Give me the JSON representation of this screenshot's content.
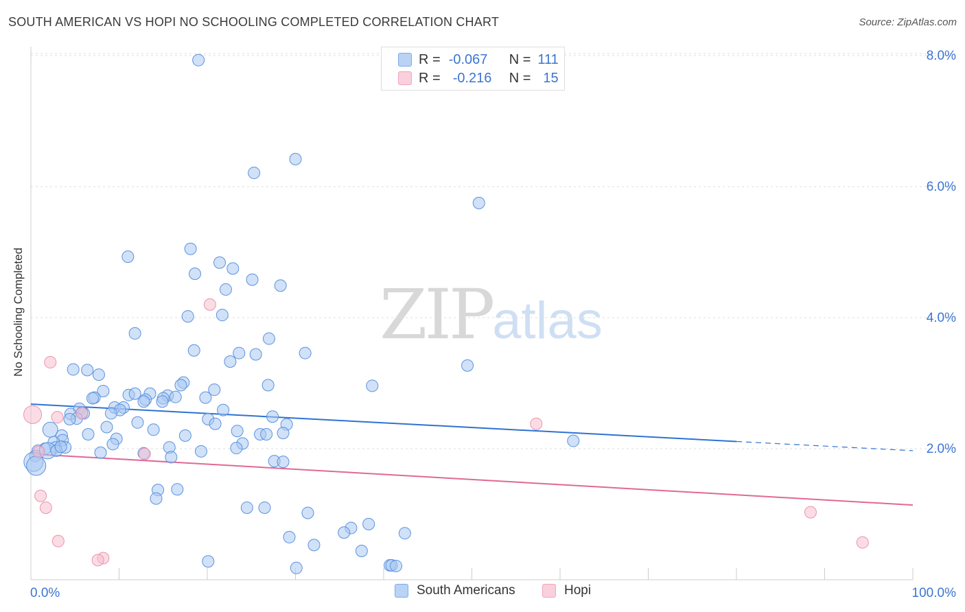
{
  "title": "SOUTH AMERICAN VS HOPI NO SCHOOLING COMPLETED CORRELATION CHART",
  "source": "Source: ZipAtlas.com",
  "watermark": {
    "zip": "ZIP",
    "atlas": "atlas"
  },
  "legend_top": [
    {
      "r_label": "R =",
      "r_value": "-0.067",
      "n_label": "N =",
      "n_value": "111"
    },
    {
      "r_label": "R =",
      "r_value": "-0.216",
      "n_label": "N =",
      "n_value": "15"
    }
  ],
  "legend_bottom": [
    {
      "label": "South Americans"
    },
    {
      "label": "Hopi"
    }
  ],
  "colors": {
    "south_american_fill": "#a9c8f2",
    "south_american_stroke": "#5a92dd",
    "south_american_line": "#2d72d2",
    "hopi_fill": "#f7bfcf",
    "hopi_stroke": "#e894ae",
    "hopi_line": "#e06895",
    "tick_label": "#3b75d1",
    "grid": "#dedede"
  },
  "chart_data": {
    "type": "scatter",
    "title": "SOUTH AMERICAN VS HOPI NO SCHOOLING COMPLETED CORRELATION CHART",
    "xlabel": "",
    "ylabel": "No Schooling Completed",
    "xlim": [
      0,
      100
    ],
    "ylim": [
      0,
      8.2
    ],
    "x_tick_labels": [
      "0.0%",
      "100.0%"
    ],
    "y_ticks": [
      2,
      4,
      6,
      8
    ],
    "y_tick_labels": [
      "2.0%",
      "4.0%",
      "6.0%",
      "8.0%"
    ],
    "series": [
      {
        "name": "South Americans",
        "r": -0.067,
        "n": 111,
        "trend": {
          "x0": 0,
          "y0": 2.68,
          "x1": 80,
          "y1": 2.11,
          "dashed_to_x": 100,
          "dashed_to_y": 1.97
        },
        "points": [
          {
            "x": 19.0,
            "y": 7.93
          },
          {
            "x": 30.0,
            "y": 6.42
          },
          {
            "x": 25.3,
            "y": 6.21
          },
          {
            "x": 50.8,
            "y": 5.75
          },
          {
            "x": 18.1,
            "y": 5.05
          },
          {
            "x": 11.0,
            "y": 4.93
          },
          {
            "x": 21.4,
            "y": 4.84
          },
          {
            "x": 22.9,
            "y": 4.75
          },
          {
            "x": 18.6,
            "y": 4.67
          },
          {
            "x": 25.1,
            "y": 4.58
          },
          {
            "x": 28.3,
            "y": 4.49
          },
          {
            "x": 22.1,
            "y": 4.43
          },
          {
            "x": 17.8,
            "y": 4.02
          },
          {
            "x": 21.7,
            "y": 4.04
          },
          {
            "x": 11.8,
            "y": 3.76
          },
          {
            "x": 27.0,
            "y": 3.68
          },
          {
            "x": 18.5,
            "y": 3.5
          },
          {
            "x": 23.6,
            "y": 3.46
          },
          {
            "x": 25.5,
            "y": 3.44
          },
          {
            "x": 31.1,
            "y": 3.46
          },
          {
            "x": 22.6,
            "y": 3.33
          },
          {
            "x": 49.5,
            "y": 3.27
          },
          {
            "x": 4.8,
            "y": 3.21
          },
          {
            "x": 6.4,
            "y": 3.2
          },
          {
            "x": 7.7,
            "y": 3.13
          },
          {
            "x": 17.3,
            "y": 3.01
          },
          {
            "x": 17.0,
            "y": 2.97
          },
          {
            "x": 26.9,
            "y": 2.97
          },
          {
            "x": 38.7,
            "y": 2.96
          },
          {
            "x": 20.8,
            "y": 2.9
          },
          {
            "x": 8.2,
            "y": 2.88
          },
          {
            "x": 11.1,
            "y": 2.82
          },
          {
            "x": 11.8,
            "y": 2.84
          },
          {
            "x": 13.5,
            "y": 2.84
          },
          {
            "x": 15.5,
            "y": 2.81
          },
          {
            "x": 16.4,
            "y": 2.79
          },
          {
            "x": 7.2,
            "y": 2.78
          },
          {
            "x": 13.0,
            "y": 2.75
          },
          {
            "x": 15.0,
            "y": 2.77
          },
          {
            "x": 19.8,
            "y": 2.78
          },
          {
            "x": 12.8,
            "y": 2.72
          },
          {
            "x": 14.9,
            "y": 2.72
          },
          {
            "x": 7.0,
            "y": 2.77
          },
          {
            "x": 9.5,
            "y": 2.63
          },
          {
            "x": 10.5,
            "y": 2.63
          },
          {
            "x": 5.5,
            "y": 2.61
          },
          {
            "x": 10.1,
            "y": 2.59
          },
          {
            "x": 21.8,
            "y": 2.59
          },
          {
            "x": 4.5,
            "y": 2.53
          },
          {
            "x": 6.0,
            "y": 2.54
          },
          {
            "x": 5.8,
            "y": 2.55
          },
          {
            "x": 9.1,
            "y": 2.54
          },
          {
            "x": 27.4,
            "y": 2.49
          },
          {
            "x": 5.2,
            "y": 2.46
          },
          {
            "x": 4.4,
            "y": 2.45
          },
          {
            "x": 20.1,
            "y": 2.45
          },
          {
            "x": 12.1,
            "y": 2.4
          },
          {
            "x": 29.0,
            "y": 2.37
          },
          {
            "x": 20.9,
            "y": 2.38
          },
          {
            "x": 8.6,
            "y": 2.33
          },
          {
            "x": 2.2,
            "y": 2.29
          },
          {
            "x": 3.5,
            "y": 2.2
          },
          {
            "x": 13.9,
            "y": 2.29
          },
          {
            "x": 23.4,
            "y": 2.27
          },
          {
            "x": 28.6,
            "y": 2.24
          },
          {
            "x": 6.5,
            "y": 2.22
          },
          {
            "x": 17.5,
            "y": 2.2
          },
          {
            "x": 26.0,
            "y": 2.22
          },
          {
            "x": 26.7,
            "y": 2.22
          },
          {
            "x": 9.7,
            "y": 2.15
          },
          {
            "x": 3.6,
            "y": 2.13
          },
          {
            "x": 2.6,
            "y": 2.1
          },
          {
            "x": 24.0,
            "y": 2.08
          },
          {
            "x": 61.5,
            "y": 2.12
          },
          {
            "x": 9.3,
            "y": 2.07
          },
          {
            "x": 15.7,
            "y": 2.02
          },
          {
            "x": 1.6,
            "y": 2.0
          },
          {
            "x": 2.8,
            "y": 2.02
          },
          {
            "x": 3.9,
            "y": 2.02
          },
          {
            "x": 23.3,
            "y": 2.01
          },
          {
            "x": 0.8,
            "y": 1.97
          },
          {
            "x": 1.9,
            "y": 1.97
          },
          {
            "x": 2.9,
            "y": 1.97
          },
          {
            "x": 7.9,
            "y": 1.94
          },
          {
            "x": 12.8,
            "y": 1.93
          },
          {
            "x": 19.3,
            "y": 1.96
          },
          {
            "x": 0.5,
            "y": 1.89
          },
          {
            "x": 15.9,
            "y": 1.87
          },
          {
            "x": 0.3,
            "y": 1.8
          },
          {
            "x": 27.6,
            "y": 1.81
          },
          {
            "x": 28.6,
            "y": 1.8
          },
          {
            "x": 0.6,
            "y": 1.74
          },
          {
            "x": 14.4,
            "y": 1.37
          },
          {
            "x": 16.6,
            "y": 1.38
          },
          {
            "x": 14.2,
            "y": 1.24
          },
          {
            "x": 24.5,
            "y": 1.1
          },
          {
            "x": 26.5,
            "y": 1.1
          },
          {
            "x": 31.4,
            "y": 1.02
          },
          {
            "x": 38.3,
            "y": 0.85
          },
          {
            "x": 36.3,
            "y": 0.79
          },
          {
            "x": 35.5,
            "y": 0.72
          },
          {
            "x": 42.4,
            "y": 0.71
          },
          {
            "x": 29.3,
            "y": 0.65
          },
          {
            "x": 32.1,
            "y": 0.53
          },
          {
            "x": 37.5,
            "y": 0.44
          },
          {
            "x": 20.1,
            "y": 0.28
          },
          {
            "x": 40.7,
            "y": 0.22
          },
          {
            "x": 40.9,
            "y": 0.22
          },
          {
            "x": 41.4,
            "y": 0.21
          },
          {
            "x": 30.1,
            "y": 0.18
          },
          {
            "x": 3.4,
            "y": 2.03
          }
        ]
      },
      {
        "name": "Hopi",
        "r": -0.216,
        "n": 15,
        "trend": {
          "x0": 0,
          "y0": 1.92,
          "x1": 100,
          "y1": 1.14
        },
        "points": [
          {
            "x": 20.3,
            "y": 4.2
          },
          {
            "x": 2.2,
            "y": 3.32
          },
          {
            "x": 0.2,
            "y": 2.52
          },
          {
            "x": 3.0,
            "y": 2.48
          },
          {
            "x": 5.8,
            "y": 2.54
          },
          {
            "x": 57.3,
            "y": 2.38
          },
          {
            "x": 0.9,
            "y": 1.95
          },
          {
            "x": 12.9,
            "y": 1.92
          },
          {
            "x": 1.1,
            "y": 1.28
          },
          {
            "x": 1.7,
            "y": 1.1
          },
          {
            "x": 88.4,
            "y": 1.03
          },
          {
            "x": 3.1,
            "y": 0.59
          },
          {
            "x": 94.3,
            "y": 0.57
          },
          {
            "x": 8.2,
            "y": 0.33
          },
          {
            "x": 7.6,
            "y": 0.3
          }
        ]
      }
    ]
  }
}
